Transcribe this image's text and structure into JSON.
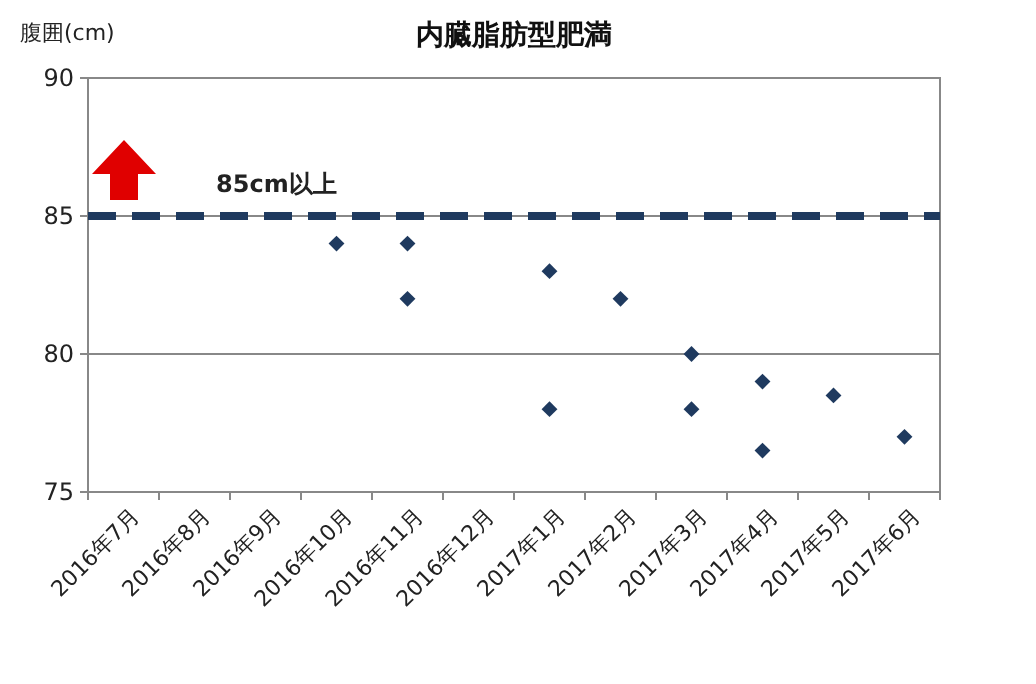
{
  "chart_data": {
    "type": "scatter",
    "title": "内臓脂肪型肥満",
    "ylabel": "腹囲(cm)",
    "categories": [
      "2016年7月",
      "2016年8月",
      "2016年9月",
      "2016年10月",
      "2016年11月",
      "2016年12月",
      "2017年1月",
      "2017年2月",
      "2017年3月",
      "2017年4月",
      "2017年5月",
      "2017年6月"
    ],
    "series": [
      {
        "color": "#1f3a5f",
        "x": [
          "2016年10月",
          "2016年11月",
          "2016年11月",
          "2017年1月",
          "2017年1月",
          "2017年2月",
          "2017年3月",
          "2017年3月",
          "2017年4月",
          "2017年4月",
          "2017年5月",
          "2017年6月"
        ],
        "values": [
          84,
          84,
          82,
          83,
          78,
          82,
          80,
          78,
          79,
          76.5,
          78.5,
          77
        ]
      }
    ],
    "ylim": [
      75,
      90
    ],
    "yticks": [
      75,
      80,
      85,
      90
    ],
    "grid": "y",
    "marker": "diamond",
    "ref_lines": [
      {
        "axis": "y",
        "value": 85,
        "label": "85cm以上",
        "color": "#1f3a5f",
        "line_style": "dashed"
      }
    ]
  }
}
